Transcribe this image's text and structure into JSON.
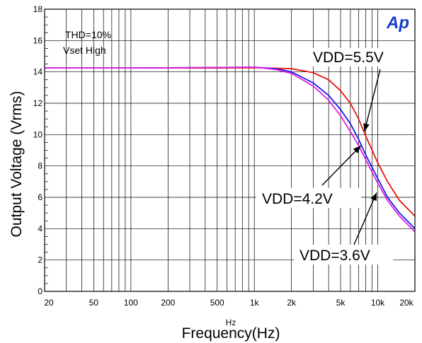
{
  "logo_text": "Ap",
  "colors": {
    "red": "#e8140e",
    "blue": "#1a1ae6",
    "magenta": "#e020e0",
    "logo": "#1a3ccc",
    "grid": "#000000"
  },
  "chart_data": {
    "type": "line",
    "xscale": "log",
    "xlim": [
      20,
      20000
    ],
    "ylim": [
      0,
      18
    ],
    "grid": true,
    "xlabel": "Frequency(Hz)",
    "xunit": "Hz",
    "ylabel": "Output Voltage (Vrms)",
    "annotations": [
      "THD=10%",
      "Vset High"
    ],
    "x_ticks": [
      {
        "value": 20,
        "label": "20"
      },
      {
        "value": 50,
        "label": "50"
      },
      {
        "value": 100,
        "label": "100"
      },
      {
        "value": 200,
        "label": "200"
      },
      {
        "value": 500,
        "label": "500"
      },
      {
        "value": 1000,
        "label": "1k"
      },
      {
        "value": 2000,
        "label": "2k"
      },
      {
        "value": 5000,
        "label": "5k"
      },
      {
        "value": 10000,
        "label": "10k"
      },
      {
        "value": 20000,
        "label": "20k"
      }
    ],
    "y_ticks": [
      0,
      2,
      4,
      6,
      8,
      10,
      12,
      14,
      16,
      18
    ],
    "series": [
      {
        "name": "VDD=5.5V",
        "color": "#e8140e",
        "x": [
          20,
          100,
          500,
          1000,
          2000,
          3000,
          4000,
          5000,
          6000,
          7000,
          8000,
          10000,
          12000,
          15000,
          20000
        ],
        "y": [
          14.25,
          14.25,
          14.25,
          14.27,
          14.2,
          13.95,
          13.5,
          12.8,
          12.0,
          11.0,
          9.9,
          8.2,
          7.0,
          5.8,
          4.8
        ]
      },
      {
        "name": "VDD=4.2V",
        "color": "#1a1ae6",
        "x": [
          20,
          100,
          500,
          1000,
          1500,
          2000,
          3000,
          4000,
          5000,
          6000,
          7000,
          8000,
          10000,
          12000,
          15000,
          20000
        ],
        "y": [
          14.25,
          14.25,
          14.28,
          14.3,
          14.2,
          14.0,
          13.3,
          12.5,
          11.6,
          10.7,
          9.7,
          8.7,
          7.2,
          6.0,
          5.0,
          4.0
        ]
      },
      {
        "name": "VDD=3.6V",
        "color": "#e020e0",
        "x": [
          20,
          100,
          500,
          1000,
          1500,
          2000,
          3000,
          4000,
          5000,
          6000,
          7000,
          8000,
          10000,
          12000,
          15000,
          20000
        ],
        "y": [
          14.25,
          14.25,
          14.28,
          14.3,
          14.15,
          13.9,
          13.1,
          12.2,
          11.2,
          10.2,
          9.3,
          8.4,
          6.9,
          5.8,
          4.8,
          3.8
        ]
      }
    ],
    "series_labels": [
      {
        "text": "VDD=5.5V",
        "arrow_to": {
          "x": 7800,
          "y": 10.2
        }
      },
      {
        "text": "VDD=4.2V",
        "arrow_to": {
          "x": 7300,
          "y": 9.3
        }
      },
      {
        "text": "VDD=3.6V",
        "arrow_to": {
          "x": 9800,
          "y": 6.3
        }
      }
    ]
  }
}
